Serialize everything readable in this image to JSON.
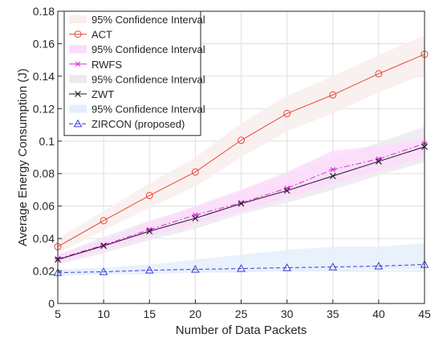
{
  "chart_data": {
    "type": "line",
    "xlabel": "Number of Data Packets",
    "ylabel": "Average Energy Consumption (J)",
    "xlim": [
      5,
      45
    ],
    "ylim": [
      0,
      0.18
    ],
    "x": [
      5,
      10,
      15,
      20,
      25,
      30,
      35,
      40,
      45
    ],
    "xticks": [
      "5",
      "10",
      "15",
      "20",
      "25",
      "30",
      "35",
      "40",
      "45"
    ],
    "yticks": [
      "0",
      "0.02",
      "0.04",
      "0.06",
      "0.08",
      "0.1",
      "0.12",
      "0.14",
      "0.16",
      "0.18"
    ],
    "grid": true,
    "legend_position": "top-left",
    "series": [
      {
        "name": "ACT",
        "band_label": "95% Confidence Interval",
        "values": [
          0.035,
          0.051,
          0.0665,
          0.081,
          0.1005,
          0.117,
          0.1285,
          0.1415,
          0.1535
        ],
        "ci_lower": [
          0.031,
          0.045,
          0.059,
          0.072,
          0.09,
          0.106,
          0.117,
          0.13,
          0.141
        ],
        "ci_upper": [
          0.04,
          0.057,
          0.074,
          0.09,
          0.111,
          0.128,
          0.14,
          0.153,
          0.165
        ],
        "color": "#e8463c",
        "band_color": "#f8eeec",
        "marker": "circle",
        "line_style": "solid"
      },
      {
        "name": "RWFS",
        "band_label": "95% Confidence Interval",
        "values": [
          0.0275,
          0.036,
          0.0455,
          0.0545,
          0.062,
          0.071,
          0.0825,
          0.089,
          0.0985
        ],
        "ci_lower": [
          0.025,
          0.033,
          0.041,
          0.049,
          0.057,
          0.065,
          0.074,
          0.082,
          0.09
        ],
        "ci_upper": [
          0.03,
          0.039,
          0.05,
          0.06,
          0.07,
          0.081,
          0.094,
          0.097,
          0.102
        ],
        "color": "#e22ce2",
        "band_color": "#fbdcfb",
        "marker": "asterisk",
        "line_style": "dashdot"
      },
      {
        "name": "ZWT",
        "band_label": "95% Confidence Interval",
        "values": [
          0.027,
          0.0355,
          0.0445,
          0.0525,
          0.0615,
          0.0695,
          0.0785,
          0.0875,
          0.0965
        ],
        "ci_lower": [
          0.024,
          0.031,
          0.039,
          0.046,
          0.055,
          0.062,
          0.07,
          0.079,
          0.087
        ],
        "ci_upper": [
          0.03,
          0.041,
          0.051,
          0.059,
          0.069,
          0.079,
          0.089,
          0.099,
          0.109
        ],
        "color": "#1a1a1a",
        "band_color": "#ede9ee",
        "marker": "x",
        "line_style": "solid"
      },
      {
        "name": "ZIRCON (proposed)",
        "band_label": "95% Confidence Interval",
        "values": [
          0.019,
          0.0195,
          0.0205,
          0.021,
          0.0215,
          0.022,
          0.0225,
          0.023,
          0.024
        ],
        "ci_lower": [
          0.017,
          0.018,
          0.018,
          0.019,
          0.019,
          0.02,
          0.02,
          0.021,
          0.021
        ],
        "ci_upper": [
          0.021,
          0.022,
          0.024,
          0.027,
          0.03,
          0.033,
          0.035,
          0.035,
          0.037
        ],
        "color": "#3f3fd6",
        "band_color": "#e4effb",
        "marker": "triangle",
        "line_style": "dashed"
      }
    ]
  }
}
